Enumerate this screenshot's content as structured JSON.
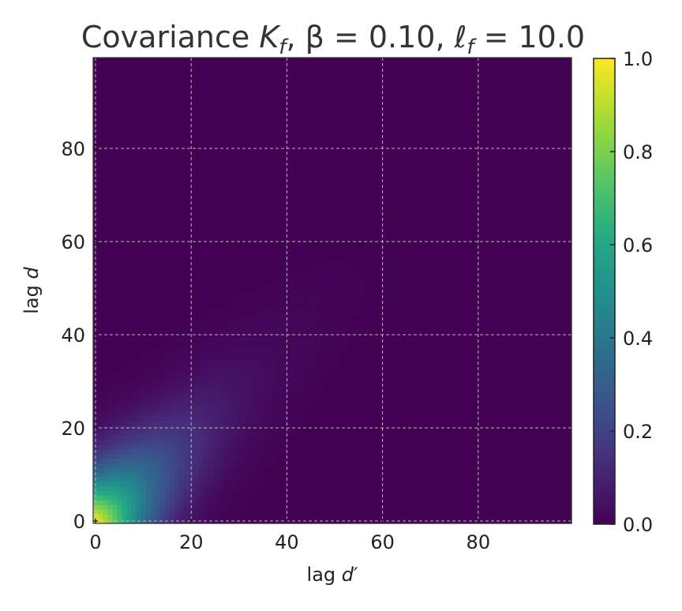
{
  "chart_data": {
    "type": "heatmap",
    "title_prefix": "Covariance ",
    "title_K": "K",
    "title_K_sub": "f",
    "title_beta": ", β = 0.10, ",
    "title_ell": "ℓ",
    "title_ell_sub": "f",
    "title_ell_value": " = 10.0",
    "xlabel_prefix": "lag ",
    "xlabel_var": "d′",
    "ylabel_prefix": "lag ",
    "ylabel_var": "d",
    "beta": 0.1,
    "length_scale": 10.0,
    "grid_size": 100,
    "xlim": [
      0,
      99
    ],
    "ylim": [
      0,
      99
    ],
    "xticks": [
      0,
      20,
      40,
      60,
      80
    ],
    "yticks": [
      0,
      20,
      40,
      60,
      80
    ],
    "grid": true,
    "colormap": "viridis",
    "colorbar": {
      "vmin": 0.0,
      "vmax": 1.0,
      "ticks": [
        "0.0",
        "0.2",
        "0.4",
        "0.6",
        "0.8",
        "1.0"
      ]
    }
  }
}
